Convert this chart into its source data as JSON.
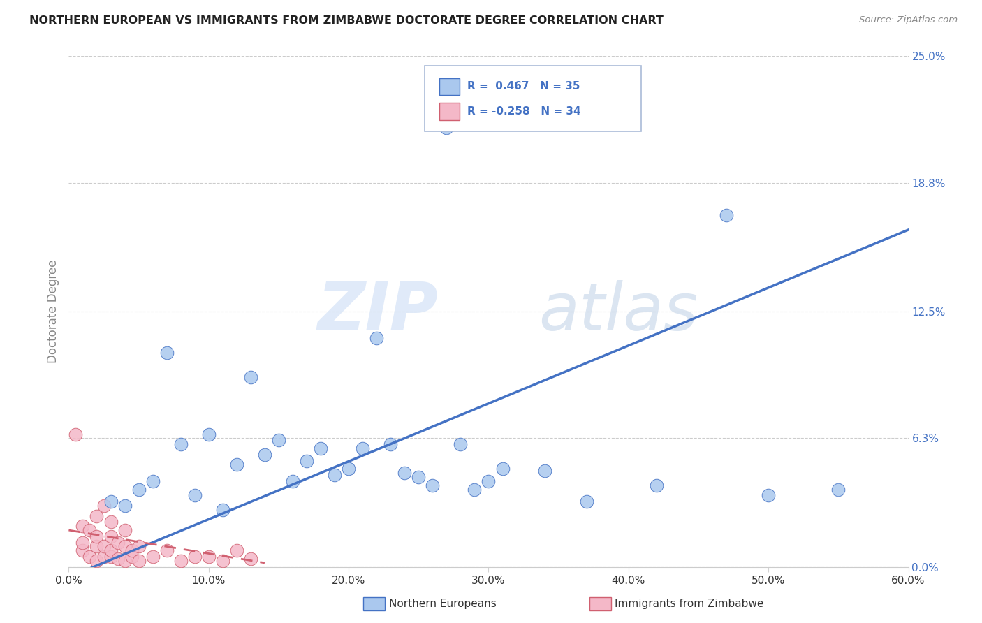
{
  "title": "NORTHERN EUROPEAN VS IMMIGRANTS FROM ZIMBABWE DOCTORATE DEGREE CORRELATION CHART",
  "source": "Source: ZipAtlas.com",
  "ylabel": "Doctorate Degree",
  "xlim": [
    0.0,
    0.6
  ],
  "ylim": [
    0.0,
    0.25
  ],
  "ytick_labels": [
    "0.0%",
    "6.3%",
    "12.5%",
    "18.8%",
    "25.0%"
  ],
  "ytick_values": [
    0.0,
    0.063,
    0.125,
    0.188,
    0.25
  ],
  "xtick_labels": [
    "0.0%",
    "10.0%",
    "20.0%",
    "30.0%",
    "40.0%",
    "50.0%",
    "60.0%"
  ],
  "xtick_values": [
    0.0,
    0.1,
    0.2,
    0.3,
    0.4,
    0.5,
    0.6
  ],
  "blue_R": 0.467,
  "blue_N": 35,
  "pink_R": -0.258,
  "pink_N": 34,
  "blue_color": "#aac8ee",
  "pink_color": "#f4b8c8",
  "blue_line_color": "#4472c4",
  "pink_line_color": "#d06070",
  "legend_label_blue": "Northern Europeans",
  "legend_label_pink": "Immigrants from Zimbabwe",
  "watermark_zip": "ZIP",
  "watermark_atlas": "atlas",
  "blue_scatter_x": [
    0.27,
    0.07,
    0.13,
    0.22,
    0.28,
    0.34,
    0.08,
    0.1,
    0.16,
    0.18,
    0.05,
    0.03,
    0.04,
    0.06,
    0.09,
    0.11,
    0.12,
    0.14,
    0.15,
    0.17,
    0.19,
    0.2,
    0.21,
    0.23,
    0.24,
    0.25,
    0.26,
    0.29,
    0.3,
    0.31,
    0.5,
    0.37,
    0.42,
    0.47,
    0.55
  ],
  "blue_scatter_y": [
    0.215,
    0.105,
    0.093,
    0.112,
    0.06,
    0.047,
    0.06,
    0.065,
    0.042,
    0.058,
    0.038,
    0.032,
    0.03,
    0.042,
    0.035,
    0.028,
    0.05,
    0.055,
    0.062,
    0.052,
    0.045,
    0.048,
    0.058,
    0.06,
    0.046,
    0.044,
    0.04,
    0.038,
    0.042,
    0.048,
    0.035,
    0.032,
    0.04,
    0.172,
    0.038
  ],
  "pink_scatter_x": [
    0.005,
    0.01,
    0.01,
    0.01,
    0.015,
    0.015,
    0.02,
    0.02,
    0.02,
    0.02,
    0.025,
    0.025,
    0.025,
    0.03,
    0.03,
    0.03,
    0.03,
    0.035,
    0.035,
    0.04,
    0.04,
    0.04,
    0.045,
    0.045,
    0.05,
    0.05,
    0.06,
    0.07,
    0.08,
    0.09,
    0.1,
    0.11,
    0.12,
    0.13
  ],
  "pink_scatter_y": [
    0.065,
    0.008,
    0.012,
    0.02,
    0.005,
    0.018,
    0.003,
    0.01,
    0.015,
    0.025,
    0.005,
    0.01,
    0.03,
    0.005,
    0.008,
    0.015,
    0.022,
    0.004,
    0.012,
    0.003,
    0.01,
    0.018,
    0.005,
    0.008,
    0.003,
    0.01,
    0.005,
    0.008,
    0.003,
    0.005,
    0.005,
    0.003,
    0.008,
    0.004
  ],
  "blue_trend_x0": 0.0,
  "blue_trend_y0": -0.005,
  "blue_trend_x1": 0.6,
  "blue_trend_y1": 0.165,
  "pink_trend_x0": 0.0,
  "pink_trend_y0": 0.018,
  "pink_trend_x1": 0.14,
  "pink_trend_y1": 0.002
}
